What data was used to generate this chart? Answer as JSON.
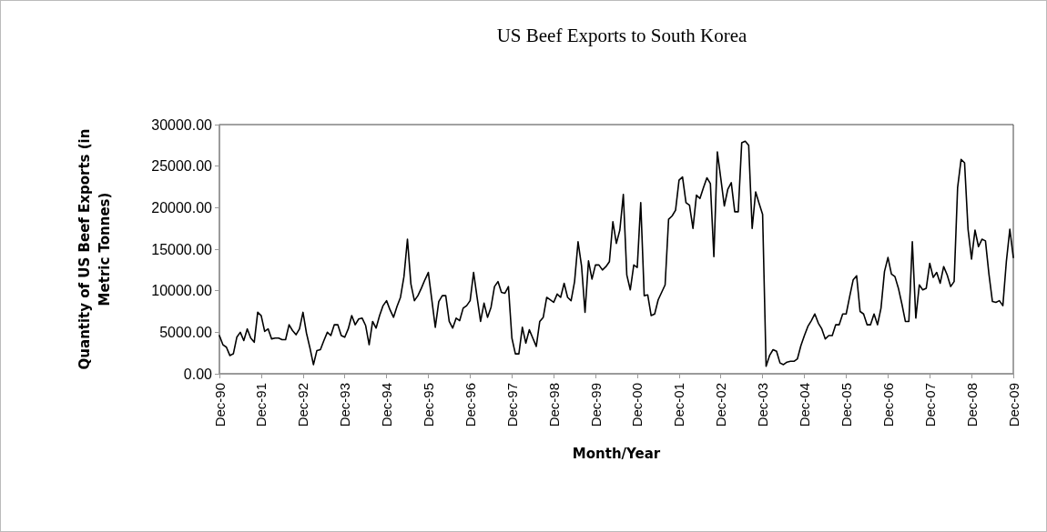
{
  "chart_data": {
    "type": "line",
    "title": "US Beef Exports to South Korea",
    "xlabel": "Month/Year",
    "ylabel": "Quantity of US Beef Exports (in Metric Tonnes)",
    "categories": [
      "Dec-90",
      null,
      null,
      null,
      null,
      null,
      null,
      null,
      null,
      null,
      null,
      null,
      "Dec-91",
      null,
      null,
      null,
      null,
      null,
      null,
      null,
      null,
      null,
      null,
      null,
      "Dec-92",
      null,
      null,
      null,
      null,
      null,
      null,
      null,
      null,
      null,
      null,
      null,
      "Dec-93",
      null,
      null,
      null,
      null,
      null,
      null,
      null,
      null,
      null,
      null,
      null,
      "Dec-94",
      null,
      null,
      null,
      null,
      null,
      null,
      null,
      null,
      null,
      null,
      null,
      "Dec-95",
      null,
      null,
      null,
      null,
      null,
      null,
      null,
      null,
      null,
      null,
      null,
      "Dec-96",
      null,
      null,
      null,
      null,
      null,
      null,
      null,
      null,
      null,
      null,
      null,
      "Dec-97",
      null,
      null,
      null,
      null,
      null,
      null,
      null,
      null,
      null,
      null,
      null,
      "Dec-98",
      null,
      null,
      null,
      null,
      null,
      null,
      null,
      null,
      null,
      null,
      null,
      "Dec-99",
      null,
      null,
      null,
      null,
      null,
      null,
      null,
      null,
      null,
      null,
      null,
      "Dec-00",
      null,
      null,
      null,
      null,
      null,
      null,
      null,
      null,
      null,
      null,
      null,
      "Dec-01",
      null,
      null,
      null,
      null,
      null,
      null,
      null,
      null,
      null,
      null,
      null,
      "Dec-02",
      null,
      null,
      null,
      null,
      null,
      null,
      null,
      null,
      null,
      null,
      null,
      "Dec-03",
      null,
      null,
      null,
      null,
      null,
      null,
      null,
      null,
      null,
      null,
      null,
      "Dec-04",
      null,
      null,
      null,
      null,
      null,
      null,
      null,
      null,
      null,
      null,
      null,
      "Dec-05",
      null,
      null,
      null,
      null,
      null,
      null,
      null,
      null,
      null,
      null,
      null,
      "Dec-06",
      null,
      null,
      null,
      null,
      null,
      null,
      null,
      null,
      null,
      null,
      null,
      "Dec-07",
      null,
      null,
      null,
      null,
      null,
      null,
      null,
      null,
      null,
      null,
      null,
      "Dec-08",
      null,
      null,
      null,
      null,
      null,
      null,
      null,
      null,
      null,
      null,
      null,
      "Dec-09"
    ],
    "series": [
      {
        "color": "#000000",
        "values": [
          4600,
          3500,
          3200,
          2200,
          2400,
          4400,
          5000,
          4000,
          5400,
          4300,
          3800,
          7400,
          7000,
          5100,
          5400,
          4200,
          4300,
          4300,
          4100,
          4100,
          5900,
          5200,
          4700,
          5400,
          7400,
          4900,
          3100,
          1100,
          2800,
          2900,
          4000,
          5000,
          4600,
          5900,
          5900,
          4600,
          4400,
          5400,
          7000,
          5900,
          6600,
          6700,
          5800,
          3500,
          6300,
          5500,
          7000,
          8200,
          8800,
          7700,
          6800,
          8100,
          9200,
          11700,
          16200,
          10800,
          8800,
          9400,
          10300,
          11300,
          12200,
          8900,
          5600,
          8700,
          9400,
          9400,
          6300,
          5500,
          6700,
          6400,
          7900,
          8200,
          8800,
          12200,
          9200,
          6300,
          8500,
          6800,
          8000,
          10500,
          11100,
          9800,
          9700,
          10500,
          4300,
          2400,
          2400,
          5600,
          3700,
          5300,
          4300,
          3300,
          6300,
          6800,
          9200,
          8900,
          8600,
          9600,
          9200,
          10900,
          9200,
          8800,
          11100,
          15900,
          13000,
          7400,
          13600,
          11400,
          13100,
          13100,
          12500,
          12900,
          13500,
          18300,
          15700,
          17300,
          21600,
          11900,
          10100,
          13100,
          12800,
          20600,
          9400,
          9500,
          7000,
          7200,
          8900,
          9800,
          10700,
          18600,
          19000,
          19700,
          23300,
          23700,
          20600,
          20300,
          17500,
          21500,
          21100,
          22400,
          23600,
          22900,
          14100,
          26700,
          23500,
          20200,
          22200,
          23000,
          19500,
          19500,
          27800,
          28000,
          27500,
          17500,
          21900,
          20500,
          19200,
          900,
          2200,
          2900,
          2700,
          1300,
          1100,
          1400,
          1500,
          1500,
          1800,
          3400,
          4600,
          5700,
          6400,
          7200,
          6100,
          5400,
          4200,
          4600,
          4600,
          5900,
          5900,
          7200,
          7200,
          9300,
          11300,
          11800,
          7500,
          7200,
          5900,
          5900,
          7200,
          5900,
          7900,
          12300,
          14000,
          12000,
          11700,
          10300,
          8400,
          6300,
          6300,
          15900,
          6700,
          10700,
          10100,
          10300,
          13300,
          11600,
          12200,
          10900,
          12900,
          11900,
          10500,
          11100,
          22400,
          25800,
          25400,
          17400,
          13800,
          17300,
          15300,
          16200,
          16000,
          12000,
          8700,
          8600,
          8800,
          8200,
          13500,
          17400,
          14000
        ]
      }
    ],
    "ylim": [
      0,
      30000
    ],
    "yticks": [
      {
        "value": 0,
        "label": "0.00"
      },
      {
        "value": 5000,
        "label": "5000.00"
      },
      {
        "value": 10000,
        "label": "10000.00"
      },
      {
        "value": 15000,
        "label": "15000.00"
      },
      {
        "value": 20000,
        "label": "20000.00"
      },
      {
        "value": 25000,
        "label": "25000.00"
      },
      {
        "value": 30000,
        "label": "30000.00"
      }
    ],
    "grid": false,
    "marker": "none",
    "line_style": "solid"
  }
}
